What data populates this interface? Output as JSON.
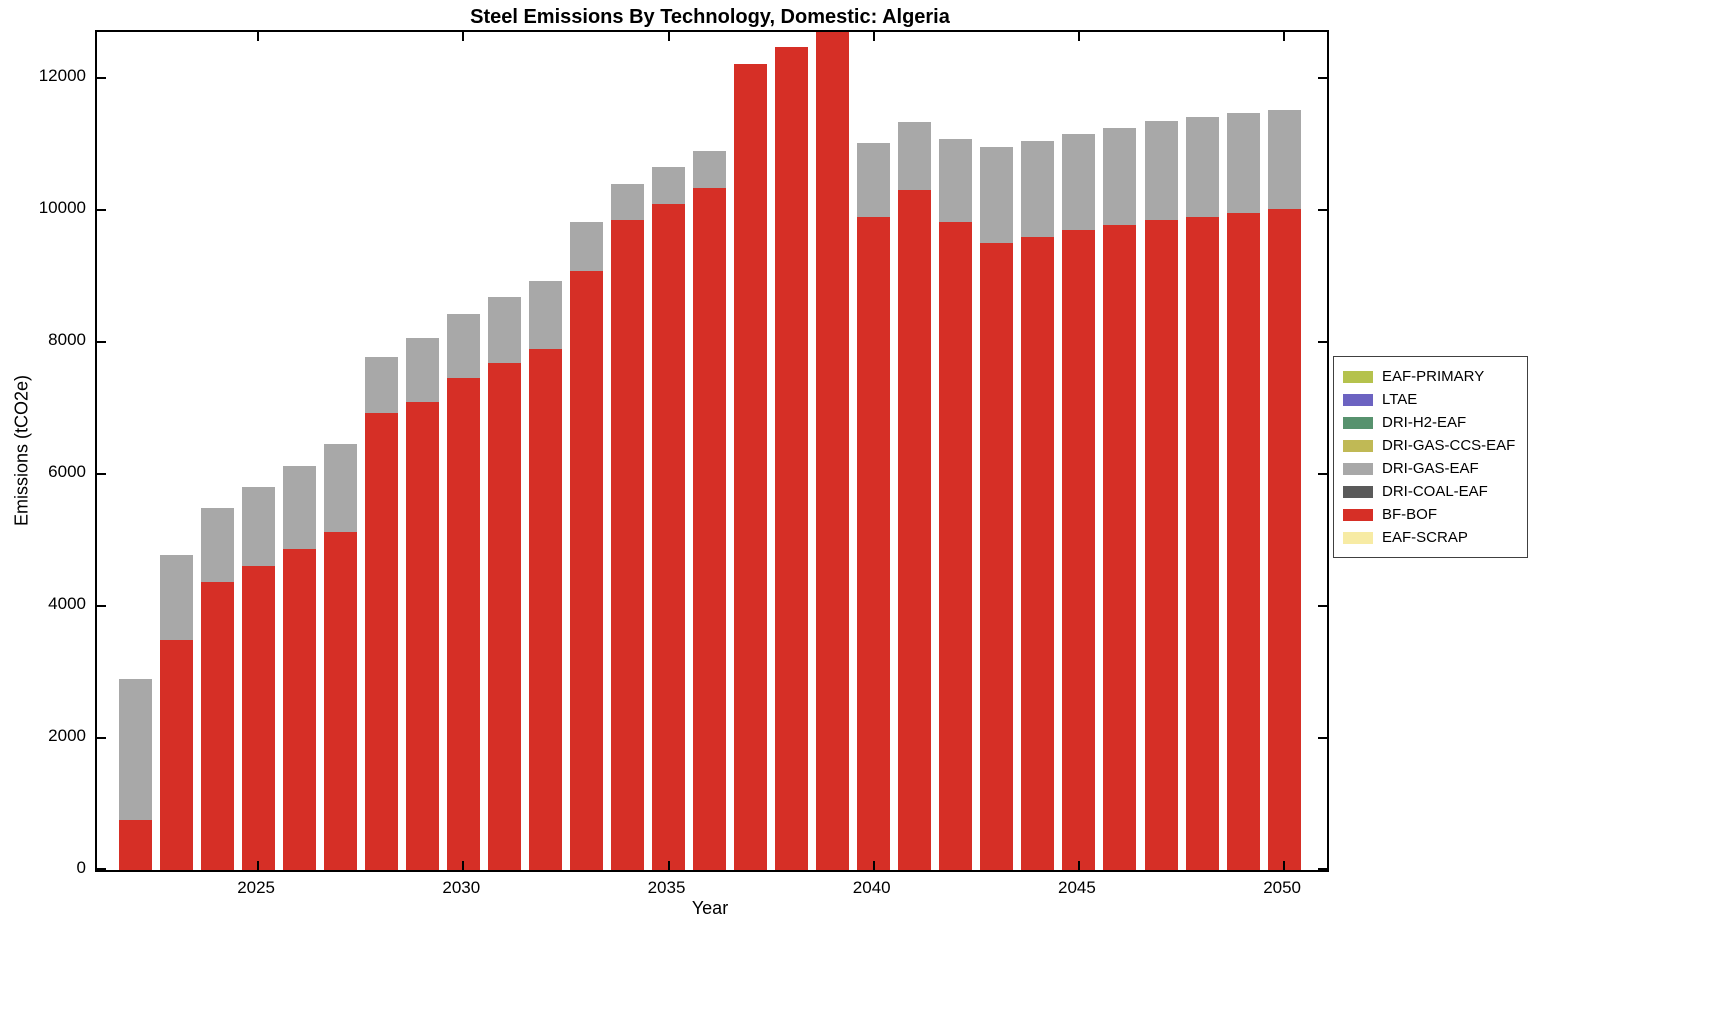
{
  "chart_data": {
    "type": "bar",
    "stacked": true,
    "title": "Steel Emissions By Technology, Domestic: Algeria",
    "xlabel": "Year",
    "ylabel": "Emissions (tCO2e)",
    "ylim": [
      0,
      12700
    ],
    "yticks": [
      0,
      2000,
      4000,
      6000,
      8000,
      10000,
      12000
    ],
    "xticks": [
      2025,
      2030,
      2035,
      2040,
      2045,
      2050
    ],
    "grid": false,
    "legend_position": "right-outside",
    "categories": [
      2022,
      2023,
      2024,
      2025,
      2026,
      2027,
      2028,
      2029,
      2030,
      2031,
      2032,
      2033,
      2034,
      2035,
      2036,
      2037,
      2038,
      2039,
      2040,
      2041,
      2042,
      2043,
      2044,
      2045,
      2046,
      2047,
      2048,
      2049,
      2050
    ],
    "series": [
      {
        "name": "BF-BOF",
        "color": "#d62f26",
        "values": [
          760,
          3480,
          4360,
          4610,
          4870,
          5130,
          6930,
          7100,
          7450,
          7680,
          7900,
          9080,
          9850,
          10090,
          10330,
          12220,
          12470,
          12760,
          9900,
          10300,
          9820,
          9500,
          9600,
          9700,
          9780,
          9850,
          9900,
          9950,
          10020
        ]
      },
      {
        "name": "DRI-GAS-EAF",
        "color": "#a8a8a8",
        "values": [
          2140,
          1300,
          1130,
          1190,
          1260,
          1320,
          850,
          960,
          980,
          1000,
          1030,
          740,
          540,
          560,
          570,
          0,
          0,
          0,
          1120,
          1030,
          1260,
          1450,
          1450,
          1450,
          1470,
          1500,
          1510,
          1520,
          1500
        ]
      }
    ],
    "legend_entries": [
      {
        "label": "EAF-PRIMARY",
        "color": "#b5c24d"
      },
      {
        "label": "LTAE",
        "color": "#6c63c1"
      },
      {
        "label": "DRI-H2-EAF",
        "color": "#57926e"
      },
      {
        "label": "DRI-GAS-CCS-EAF",
        "color": "#c0b955"
      },
      {
        "label": "DRI-GAS-EAF",
        "color": "#a8a8a8"
      },
      {
        "label": "DRI-COAL-EAF",
        "color": "#5a5a5a"
      },
      {
        "label": "BF-BOF",
        "color": "#d62f26"
      },
      {
        "label": "EAF-SCRAP",
        "color": "#f7eba4"
      }
    ]
  }
}
